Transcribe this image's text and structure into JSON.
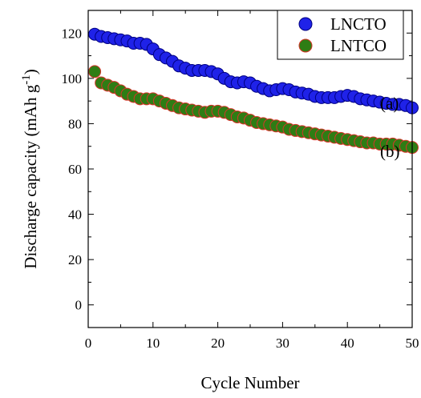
{
  "chart_data": {
    "type": "scatter",
    "title": "",
    "xlabel": "Cycle Number",
    "ylabel": "Discharge capacity (mAh g",
    "ylabel_superscript": "-1",
    "ylabel_close": ")",
    "xlim": [
      0,
      50
    ],
    "ylim": [
      -10,
      130
    ],
    "xticks": [
      0,
      10,
      20,
      30,
      40,
      50
    ],
    "yticks": [
      0,
      20,
      40,
      60,
      80,
      100,
      120
    ],
    "grid": false,
    "legend_position": "top-right",
    "x": [
      1,
      2,
      3,
      4,
      5,
      6,
      7,
      8,
      9,
      10,
      11,
      12,
      13,
      14,
      15,
      16,
      17,
      18,
      19,
      20,
      21,
      22,
      23,
      24,
      25,
      26,
      27,
      28,
      29,
      30,
      31,
      32,
      33,
      34,
      35,
      36,
      37,
      38,
      39,
      40,
      41,
      42,
      43,
      44,
      45,
      46,
      47,
      48,
      49,
      50
    ],
    "series": [
      {
        "name": "LNCTO",
        "fill": "#1f22e8",
        "stroke": "#000080",
        "annotation": "(a)",
        "values": [
          119.5,
          118.5,
          118,
          117.5,
          117,
          116.5,
          115.5,
          115.5,
          115,
          113,
          110.5,
          109,
          107.5,
          105.5,
          104.5,
          103.5,
          103.5,
          103.5,
          103,
          102,
          100,
          98.5,
          98,
          98.5,
          98,
          96.5,
          95.5,
          94.5,
          95,
          95.5,
          95,
          94,
          93.5,
          93,
          92,
          91.5,
          91.5,
          91.5,
          92,
          92.5,
          92,
          91,
          90.5,
          90,
          89.5,
          89,
          88.5,
          88.5,
          88,
          87
        ]
      },
      {
        "name": "LNTCO",
        "fill": "#2e7d14",
        "stroke": "#d8342a",
        "annotation": "(b)",
        "values": [
          103,
          98,
          97,
          96,
          94.5,
          93,
          92,
          91,
          91,
          91,
          90,
          89,
          88,
          87,
          86.5,
          86,
          85.5,
          85,
          85.5,
          85.5,
          85,
          84,
          83,
          82.5,
          81.5,
          80.5,
          80,
          79.5,
          79,
          78.5,
          77.5,
          77,
          76.5,
          76,
          75.5,
          75,
          74.5,
          74,
          73.5,
          73,
          72.5,
          72,
          71.5,
          71.5,
          71,
          71,
          71,
          70.5,
          70,
          69.5
        ]
      }
    ]
  }
}
